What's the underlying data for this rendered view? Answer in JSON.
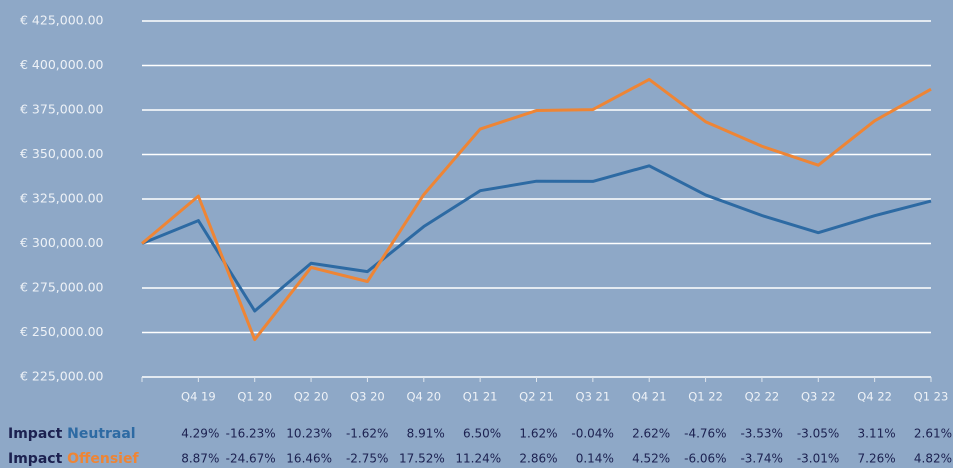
{
  "chart_data": {
    "type": "line",
    "categories": [
      null,
      "Q4 19",
      "Q1 20",
      "Q2 20",
      "Q3 20",
      "Q4 20",
      "Q1 21",
      "Q2 21",
      "Q3 21",
      "Q4 21",
      "Q1 22",
      "Q2 22",
      "Q3 22",
      "Q4 22",
      "Q1 23"
    ],
    "series": [
      {
        "name": "Neutraal",
        "color": "#2d6aa3",
        "values": [
          300000,
          312870,
          262080,
          288900,
          284220,
          309540,
          329660,
          335000,
          334870,
          343640,
          327280,
          315730,
          306100,
          315620,
          323860
        ]
      },
      {
        "name": "Offensief",
        "color": "#ee8535",
        "values": [
          300000,
          326610,
          246040,
          286530,
          278650,
          327470,
          364280,
          374700,
          375230,
          392190,
          368420,
          354640,
          343970,
          368940,
          386720
        ]
      }
    ],
    "ylim": [
      225000,
      425000
    ],
    "yticks": [
      {
        "value": 225000,
        "label": "€ 225,000.00"
      },
      {
        "value": 250000,
        "label": "€ 250,000.00"
      },
      {
        "value": 275000,
        "label": "€ 275,000.00"
      },
      {
        "value": 300000,
        "label": "€ 300,000.00"
      },
      {
        "value": 325000,
        "label": "€ 325,000.00"
      },
      {
        "value": 350000,
        "label": "€ 350,000.00"
      },
      {
        "value": 375000,
        "label": "€ 375,000.00"
      },
      {
        "value": 400000,
        "label": "€ 400,000.00"
      },
      {
        "value": 425000,
        "label": "€ 425,000.00"
      }
    ],
    "grid": true
  },
  "impact_table": {
    "label": "Impact",
    "rows": [
      {
        "values": [
          "4.29%",
          "-16.23%",
          "10.23%",
          "-1.62%",
          "8.91%",
          "6.50%",
          "1.62%",
          "-0.04%",
          "2.62%",
          "-4.76%",
          "-3.53%",
          "-3.05%",
          "3.11%",
          "2.61%"
        ]
      },
      {
        "values": [
          "8.87%",
          "-24.67%",
          "16.46%",
          "-2.75%",
          "17.52%",
          "11.24%",
          "2.86%",
          "0.14%",
          "4.52%",
          "-6.06%",
          "-3.74%",
          "-3.01%",
          "7.26%",
          "4.82%"
        ]
      }
    ]
  }
}
